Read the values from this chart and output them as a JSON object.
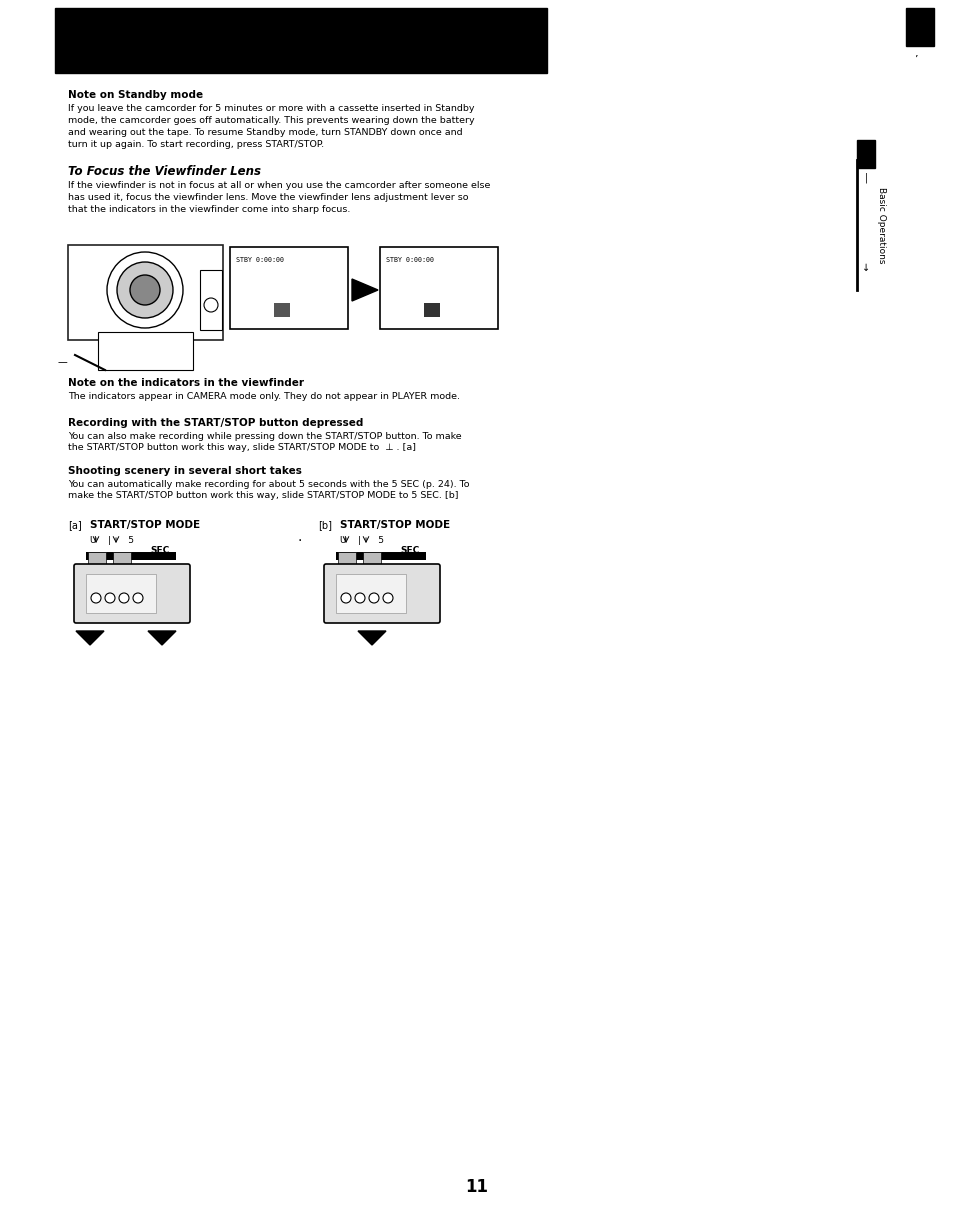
{
  "bg_color": "#ffffff",
  "page_width": 9.54,
  "page_height": 12.26,
  "section1_title": "Note on Standby mode",
  "section1_body": "If you leave the camcorder for 5 minutes or more with a cassette inserted in Standby\nmode, the camcorder goes off automatically. This prevents wearing down the battery\nand wearing out the tape. To resume Standby mode, turn STANDBY down once and\nturn it up again. To start recording, press START/STOP.",
  "section2_title": "To Focus the Viewfinder Lens",
  "section2_body": "If the viewfinder is not in focus at all or when you use the camcorder after someone else\nhas used it, focus the viewfinder lens. Move the viewfinder lens adjustment lever so\nthat the indicators in the viewfinder come into sharp focus.",
  "section3_title": "Note on the indicators in the viewfinder",
  "section3_body": "The indicators appear in CAMERA mode only. They do not appear in PLAYER mode.",
  "section4_title": "Recording with the START/STOP button depressed",
  "section4_line1": "You can also make recording while pressing down the START/STOP button. To make",
  "section4_line2": "the START/STOP button work this way, slide START/STOP MODE to  ⊥ . [a]",
  "section5_title": "Shooting scenery in several short takes",
  "section5_line1": "You can automatically make recording for about 5 seconds with the 5 SEC (p. 24). To",
  "section5_line2": "make the START/STOP button work this way, slide START/STOP MODE to 5 SEC. [b]",
  "side_label": "Basic Operations",
  "page_number": "11",
  "viewfinder_text1": "STBY 0:00:00",
  "viewfinder_text2": "STBY 0:00:00"
}
